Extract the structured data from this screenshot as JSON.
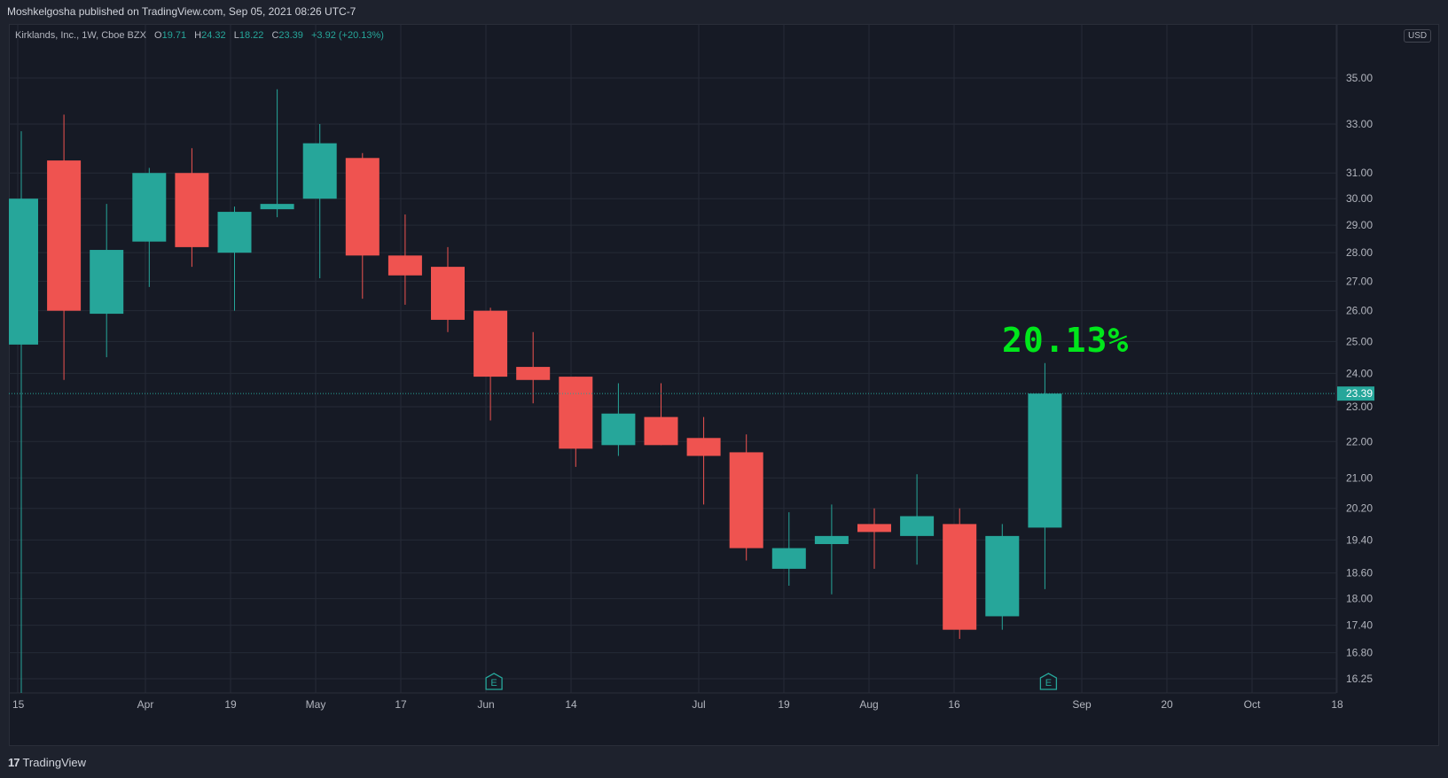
{
  "header": {
    "published_by": "Moshkelgosha published on TradingView.com, Sep 05, 2021 08:26 UTC-7"
  },
  "legend": {
    "symbol": "Kirklands, Inc., 1W, Cboe BZX",
    "open_label": "O",
    "open": "19.71",
    "high_label": "H",
    "high": "24.32",
    "low_label": "L",
    "low": "18.22",
    "close_label": "C",
    "close": "23.39",
    "change": "+3.92 (+20.13%)"
  },
  "currency_button": "USD",
  "annotation": "20.13%",
  "footer": {
    "brand": "TradingView",
    "logo_mark": "17"
  },
  "colors": {
    "up": "#26a69a",
    "down": "#ef5350",
    "annotation": "#00e61b",
    "last_price_bg": "#26a69a"
  },
  "chart_data": {
    "type": "candlestick",
    "title": "Kirklands, Inc., 1W, Cboe BZX",
    "y_scale": "log",
    "ylim": [
      16.0,
      37.5
    ],
    "y_ticks": [
      "16.25",
      "16.80",
      "17.40",
      "18.00",
      "18.60",
      "19.40",
      "20.20",
      "21.00",
      "22.00",
      "23.00",
      "24.00",
      "25.00",
      "26.00",
      "27.00",
      "28.00",
      "29.00",
      "30.00",
      "31.00",
      "33.00",
      "35.00"
    ],
    "x_ticks": [
      "15",
      "Apr",
      "19",
      "May",
      "17",
      "Jun",
      "14",
      "Jul",
      "19",
      "Aug",
      "16",
      "Sep",
      "20",
      "Oct",
      "18"
    ],
    "last_price": "23.39",
    "grid": true,
    "series": [
      {
        "o": 24.9,
        "h": 32.7,
        "l": null,
        "c": 30.0
      },
      {
        "o": 31.5,
        "h": 33.4,
        "l": 23.8,
        "c": 26.0
      },
      {
        "o": 25.9,
        "h": 29.8,
        "l": 24.5,
        "c": 28.1
      },
      {
        "o": 28.4,
        "h": 31.2,
        "l": 26.8,
        "c": 31.0
      },
      {
        "o": 31.0,
        "h": 32.0,
        "l": 27.5,
        "c": 28.2
      },
      {
        "o": 28.0,
        "h": 29.7,
        "l": 26.0,
        "c": 29.5
      },
      {
        "o": 29.6,
        "h": 34.5,
        "l": 29.3,
        "c": 29.8
      },
      {
        "o": 30.0,
        "h": 33.0,
        "l": 27.1,
        "c": 32.2
      },
      {
        "o": 31.6,
        "h": 31.8,
        "l": 26.4,
        "c": 27.9
      },
      {
        "o": 27.9,
        "h": 29.4,
        "l": 26.2,
        "c": 27.2
      },
      {
        "o": 27.5,
        "h": 28.2,
        "l": 25.3,
        "c": 25.7
      },
      {
        "o": 26.0,
        "h": 26.1,
        "l": 22.6,
        "c": 23.9
      },
      {
        "o": 24.2,
        "h": 25.3,
        "l": 23.1,
        "c": 23.8
      },
      {
        "o": 23.9,
        "h": 23.9,
        "l": 21.3,
        "c": 21.8
      },
      {
        "o": 21.9,
        "h": 23.7,
        "l": 21.6,
        "c": 22.8
      },
      {
        "o": 22.7,
        "h": 23.7,
        "l": 21.9,
        "c": 21.9
      },
      {
        "o": 22.1,
        "h": 22.7,
        "l": 20.3,
        "c": 21.6
      },
      {
        "o": 21.7,
        "h": 22.2,
        "l": 18.9,
        "c": 19.2
      },
      {
        "o": 18.7,
        "h": 20.1,
        "l": 18.3,
        "c": 19.2
      },
      {
        "o": 19.3,
        "h": 20.3,
        "l": 18.1,
        "c": 19.5
      },
      {
        "o": 19.8,
        "h": 20.2,
        "l": 18.7,
        "c": 19.6
      },
      {
        "o": 19.5,
        "h": 21.1,
        "l": 18.8,
        "c": 20.0
      },
      {
        "o": 19.8,
        "h": 20.2,
        "l": 17.1,
        "c": 17.3
      },
      {
        "o": 17.6,
        "h": 19.8,
        "l": 17.3,
        "c": 19.5
      },
      {
        "o": 19.71,
        "h": 24.32,
        "l": 18.22,
        "c": 23.39
      }
    ],
    "earnings_marker": "E",
    "earnings_weeks": [
      11,
      24
    ]
  }
}
